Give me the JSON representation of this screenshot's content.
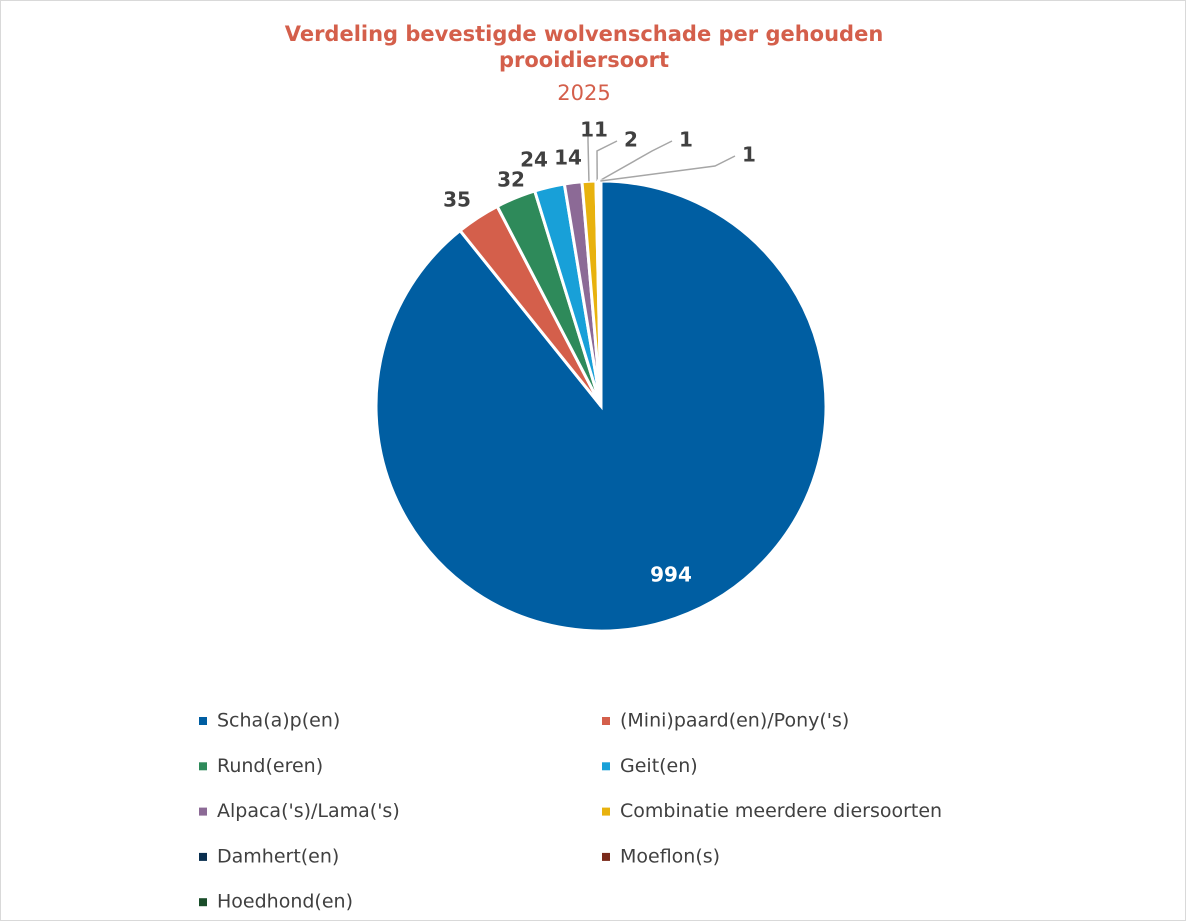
{
  "chart_data": {
    "type": "pie",
    "title": "Verdeling bevestigde wolvenschade per gehouden prooidiersoort",
    "subtitle": "2025",
    "categories": [
      "Scha(a)p(en)",
      "(Mini)paard(en)/Pony('s)",
      "Rund(eren)",
      "Geit(en)",
      "Alpaca('s)/Lama('s)",
      "Combinatie meerdere diersoorten",
      "Damhert(en)",
      "Moeflon(s)",
      "Hoedhond(en)"
    ],
    "values": [
      994,
      35,
      32,
      24,
      14,
      11,
      2,
      1,
      1
    ],
    "colors": [
      "#005ea2",
      "#d45f4b",
      "#2e8a5a",
      "#18a0d8",
      "#8c6a96",
      "#e8b20e",
      "#0a2f4f",
      "#7a2a1a",
      "#1a4d2a"
    ],
    "legend": "bottom"
  }
}
